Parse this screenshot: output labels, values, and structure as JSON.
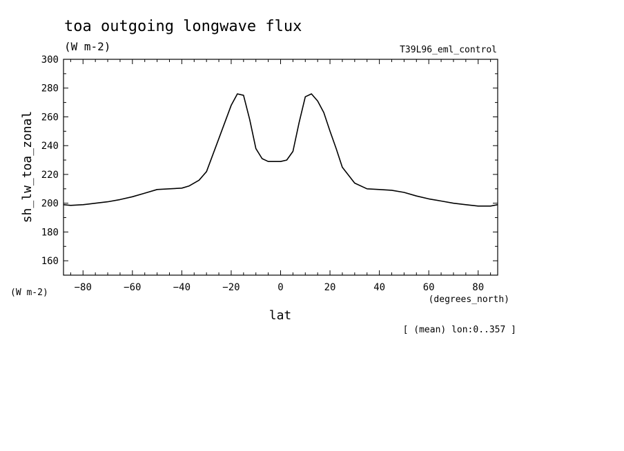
{
  "chart_data": {
    "type": "line",
    "title": "toa outgoing longwave flux",
    "units": "(W m-2)",
    "experiment": "T39L96_eml_control",
    "ylabel": "sh_lw_toa_zonal",
    "yunits": "(W m-2)",
    "xlabel": "lat",
    "xunits": "(degrees_north)",
    "footnote": "[ (mean) lon:0..357 ]",
    "xlim": [
      -87.9,
      87.9
    ],
    "ylim": [
      150,
      300
    ],
    "xticks": [
      -80,
      -60,
      -40,
      -20,
      0,
      20,
      40,
      60,
      80
    ],
    "yticks": [
      160,
      180,
      200,
      220,
      240,
      260,
      280,
      300
    ],
    "grid": false,
    "line_color": "#000000",
    "series": [
      {
        "x": [
          -87.9,
          -85,
          -80,
          -75,
          -70,
          -65,
          -60,
          -55,
          -50,
          -45,
          -40,
          -37,
          -33,
          -30,
          -25,
          -20,
          -17.5,
          -15,
          -12.5,
          -10,
          -7.5,
          -5,
          -2.5,
          0,
          2.5,
          5,
          7.5,
          10,
          12.5,
          15,
          17.5,
          20,
          22.5,
          25,
          30,
          35,
          40,
          45,
          50,
          55,
          60,
          65,
          70,
          75,
          80,
          85,
          87.9
        ],
        "y": [
          199,
          198.5,
          199,
          200,
          201,
          202.5,
          204.5,
          207,
          209.5,
          210,
          210.5,
          212,
          216,
          222,
          245,
          268,
          276,
          275,
          258,
          238,
          231,
          229,
          229,
          229,
          230,
          236,
          256,
          274,
          276,
          271,
          263,
          250,
          238,
          225,
          214,
          210,
          209.5,
          209,
          207.5,
          205,
          203,
          201.5,
          200,
          199,
          198,
          198,
          199
        ]
      }
    ]
  }
}
